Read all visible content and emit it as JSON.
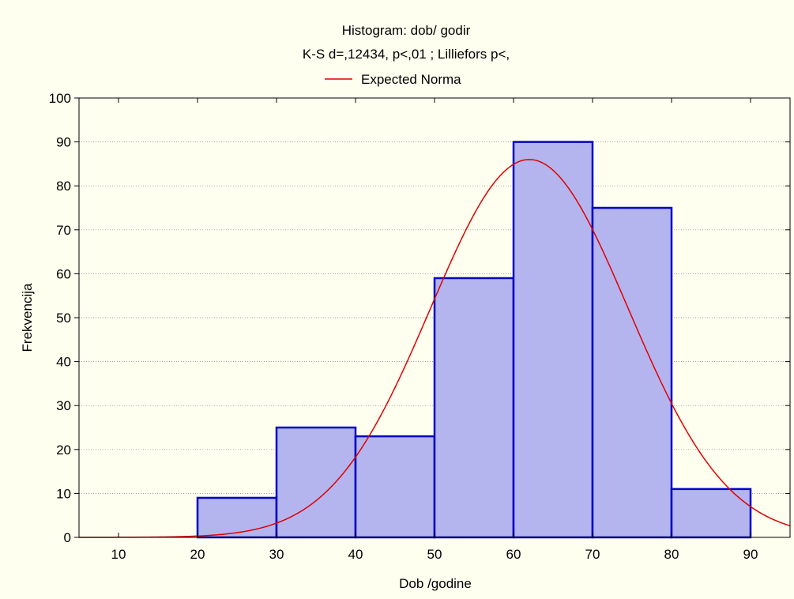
{
  "colors": {
    "background": "#fffff0",
    "bar_fill": "#b4b4ee",
    "bar_stroke": "#0000c8",
    "curve": "#e00000",
    "grid": "#808080",
    "axis": "#000000"
  },
  "chart_data": {
    "type": "bar",
    "title": "Histogram: dob/ godir",
    "subtitle": "K-S d=,12434, p<,01 ; Lilliefors p<,",
    "xlabel": "Dob /godine",
    "ylabel": "Frekvencija",
    "xlim": [
      5,
      95
    ],
    "ylim": [
      0,
      100
    ],
    "x_ticks": [
      10,
      20,
      30,
      40,
      50,
      60,
      70,
      80,
      90
    ],
    "y_ticks": [
      0,
      10,
      20,
      30,
      40,
      50,
      60,
      70,
      80,
      90,
      100
    ],
    "grid": true,
    "legend_position": "top-center",
    "bins": [
      {
        "start": 20,
        "end": 30,
        "value": 9
      },
      {
        "start": 30,
        "end": 40,
        "value": 25
      },
      {
        "start": 40,
        "end": 50,
        "value": 23
      },
      {
        "start": 50,
        "end": 60,
        "value": 59
      },
      {
        "start": 60,
        "end": 70,
        "value": 90
      },
      {
        "start": 70,
        "end": 80,
        "value": 75
      },
      {
        "start": 80,
        "end": 90,
        "value": 11
      }
    ],
    "series": [
      {
        "name": "Expected Norma",
        "type": "line",
        "mean": 62,
        "sd": 12.5,
        "peak": 86
      }
    ]
  }
}
